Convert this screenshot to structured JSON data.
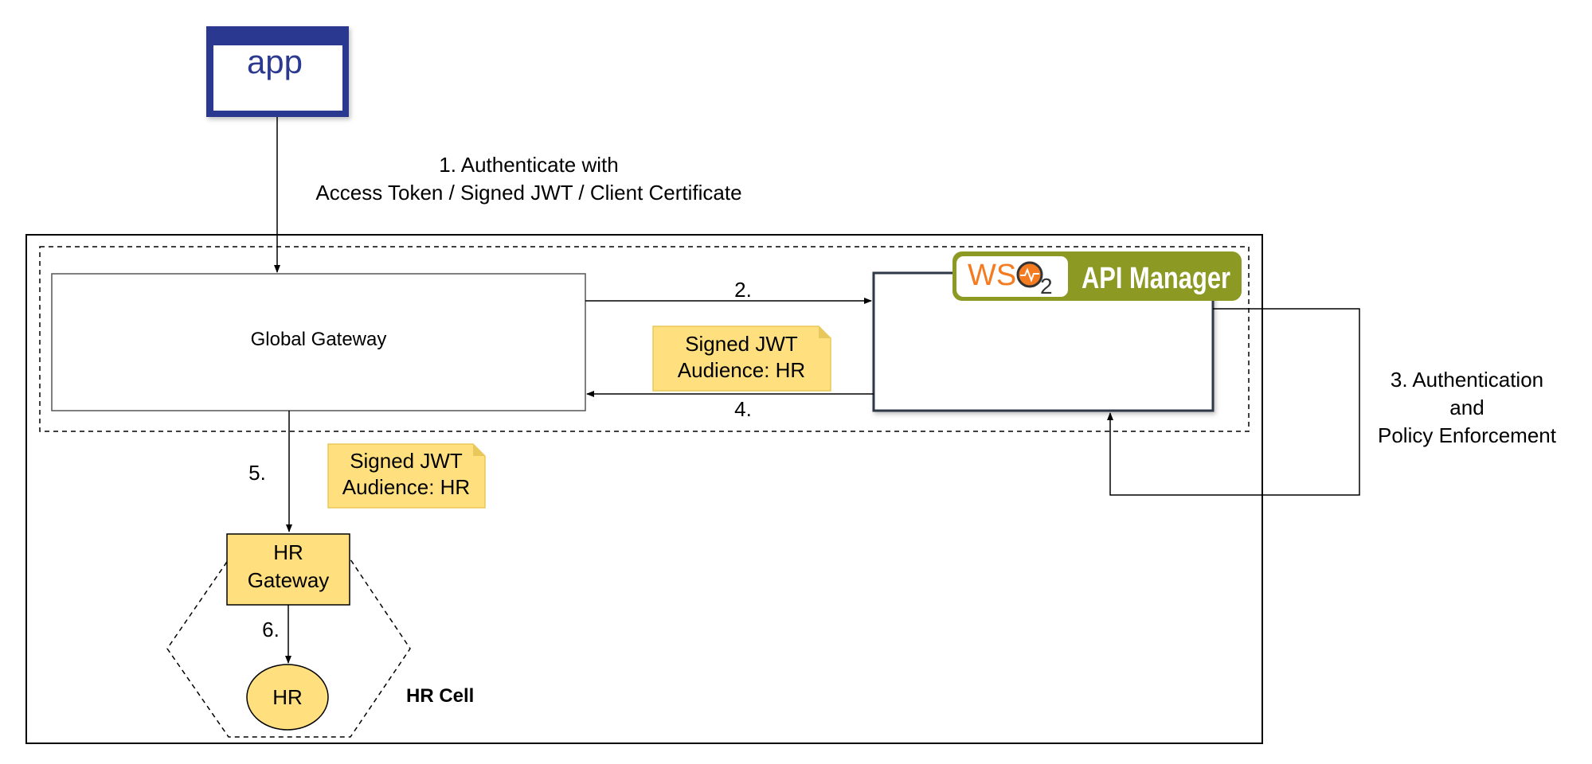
{
  "app": {
    "label": "app"
  },
  "step1": {
    "line1": "1. Authenticate with",
    "line2": "Access Token / Signed JWT / Client Certificate"
  },
  "global_gateway": {
    "label": "Global Gateway"
  },
  "api_manager": {
    "brand_ws": "WS",
    "brand_o": "O",
    "brand_2": "2",
    "title": "API Manager"
  },
  "step2": {
    "label": "2."
  },
  "step3": {
    "line1": "3. Authentication",
    "line2": "and",
    "line3": "Policy Enforcement"
  },
  "step4": {
    "label": "4."
  },
  "step5": {
    "label": "5."
  },
  "step6": {
    "label": "6."
  },
  "note_top": {
    "line1": "Signed JWT",
    "line2": "Audience: HR"
  },
  "note_bottom": {
    "line1": "Signed JWT",
    "line2": "Audience: HR"
  },
  "hr_gateway": {
    "line1": "HR",
    "line2": "Gateway"
  },
  "hr_service": {
    "label": "HR"
  },
  "hr_cell": {
    "label": "HR Cell"
  },
  "colors": {
    "app_navy": "#2b3990",
    "note_yellow": "#ffdf7e",
    "note_border": "#e8c85a",
    "wso2_olive": "#8c9a24",
    "wso2_orange": "#f47b20",
    "api_box_border": "#2d3847"
  }
}
